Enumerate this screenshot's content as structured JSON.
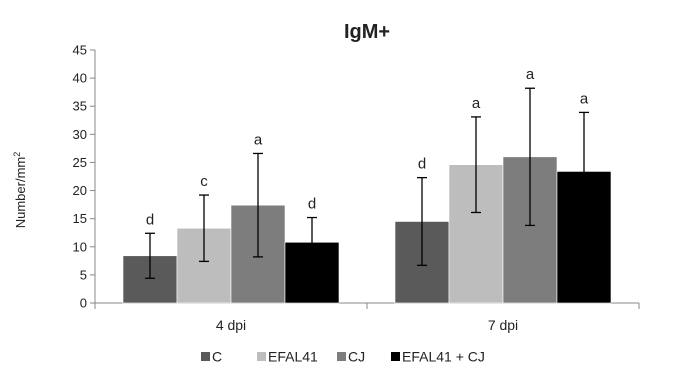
{
  "chart_data": {
    "type": "bar",
    "title": "IgM+",
    "ylabel": "Number/mm",
    "ylabel_sup": "2",
    "xlabel": "",
    "ylim": [
      0,
      45
    ],
    "yticks": [
      0,
      5,
      10,
      15,
      20,
      25,
      30,
      35,
      40,
      45
    ],
    "categories": [
      "4 dpi",
      "7 dpi"
    ],
    "series": [
      {
        "name": "C",
        "color": "#5a5a5a",
        "values": [
          8.4,
          14.5
        ],
        "errors": [
          4.0,
          7.8
        ],
        "labels": [
          "d",
          "d"
        ]
      },
      {
        "name": "EFAL41",
        "color": "#bdbdbd",
        "values": [
          13.3,
          24.6
        ],
        "errors": [
          5.9,
          8.5
        ],
        "labels": [
          "c",
          "a"
        ]
      },
      {
        "name": "CJ",
        "color": "#7d7d7d",
        "values": [
          17.4,
          26.0
        ],
        "errors": [
          9.2,
          12.2
        ],
        "labels": [
          "a",
          "a"
        ]
      },
      {
        "name": "EFAL41 + CJ",
        "color": "#000000",
        "values": [
          10.8,
          23.4
        ],
        "errors": [
          4.4,
          10.5
        ],
        "labels": [
          "d",
          "a"
        ]
      }
    ],
    "legend_position": "bottom",
    "grid": false
  }
}
